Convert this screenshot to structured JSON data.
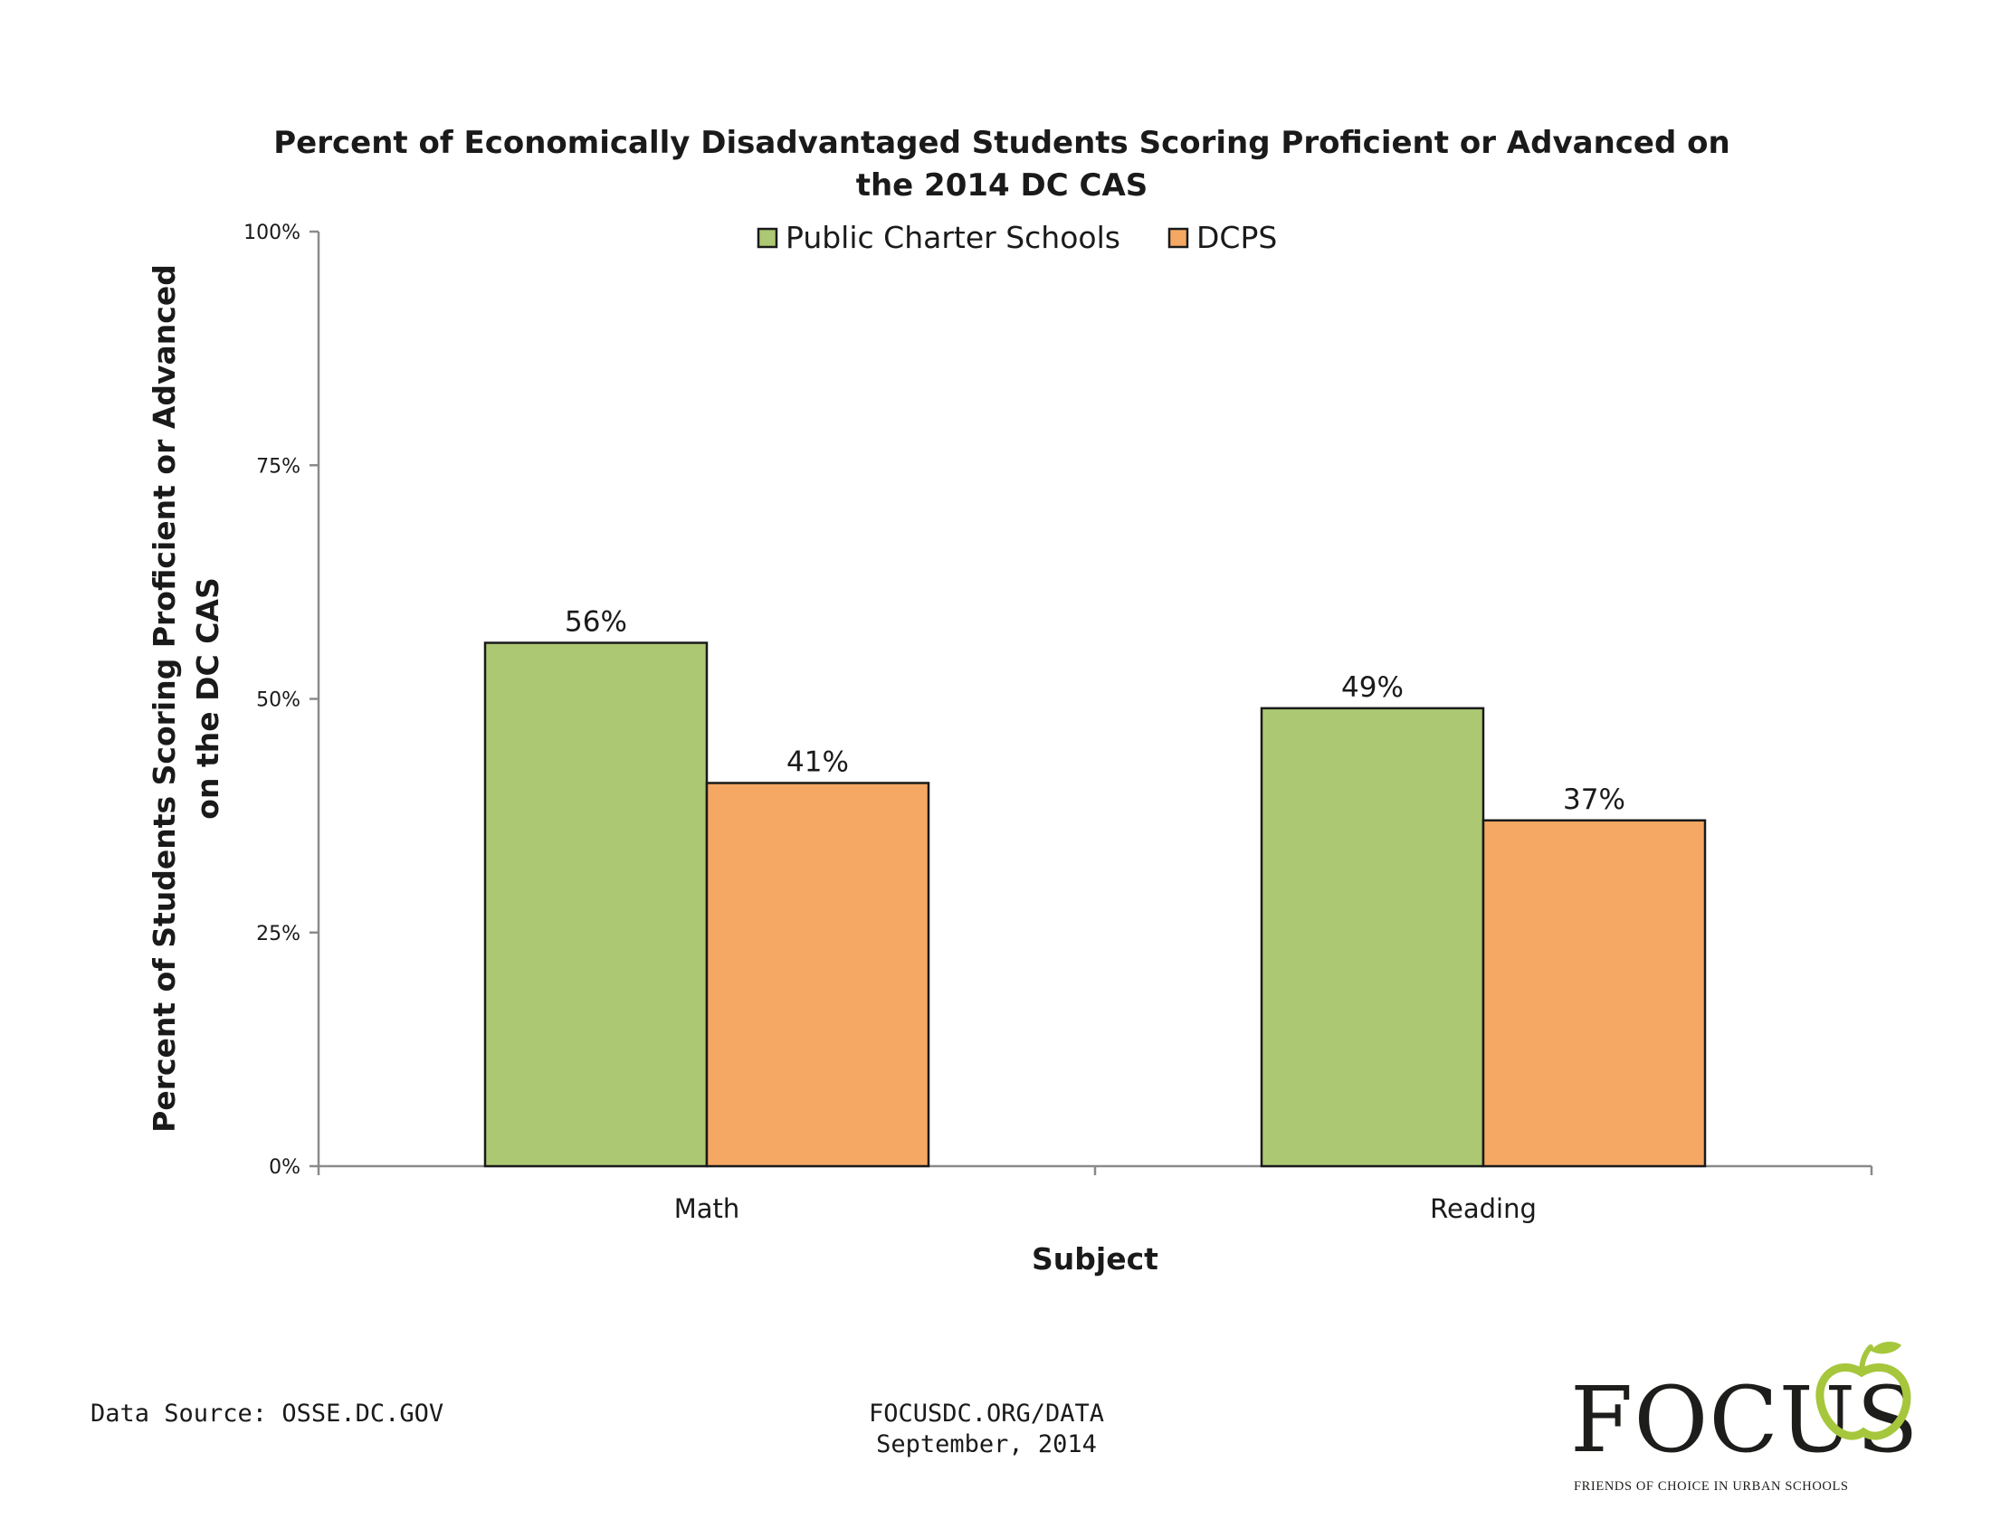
{
  "chart_data": {
    "type": "bar",
    "title": [
      "Percent of Economically Disadvantaged Students Scoring Proficient or Advanced on",
      "the 2014 DC CAS"
    ],
    "categories": [
      "Math",
      "Reading"
    ],
    "series": [
      {
        "name": "Public Charter Schools",
        "values": [
          56,
          49
        ],
        "labels": [
          "56%",
          "49%"
        ],
        "color": "#acc873"
      },
      {
        "name": "DCPS",
        "values": [
          41,
          37
        ],
        "labels": [
          "41%",
          "37%"
        ],
        "color": "#f5a864"
      }
    ],
    "xlabel": "Subject",
    "ylabel": [
      "Percent of Students Scoring Proficient or Advanced",
      "on the DC CAS"
    ],
    "ylim": [
      0,
      100
    ],
    "y_ticks": [
      0,
      25,
      50,
      75,
      100
    ],
    "y_tick_labels": [
      "0%",
      "25%",
      "50%",
      "75%",
      "100%"
    ],
    "grid": false,
    "legend_position": "top-center"
  },
  "footer": {
    "source": "Data Source: OSSE.DC.GOV",
    "url": "FOCUSDC.ORG/DATA",
    "date": "September, 2014"
  },
  "logo": {
    "word": "FOCUS",
    "tagline": "FRIENDS OF CHOICE IN URBAN SCHOOLS",
    "icon": "apple-icon",
    "colors": {
      "apple": "#a6c63c",
      "text": "#1d1d1b"
    }
  },
  "colors": {
    "axis": "#8a8a8a",
    "bar_outline": "#1a1a1a"
  }
}
